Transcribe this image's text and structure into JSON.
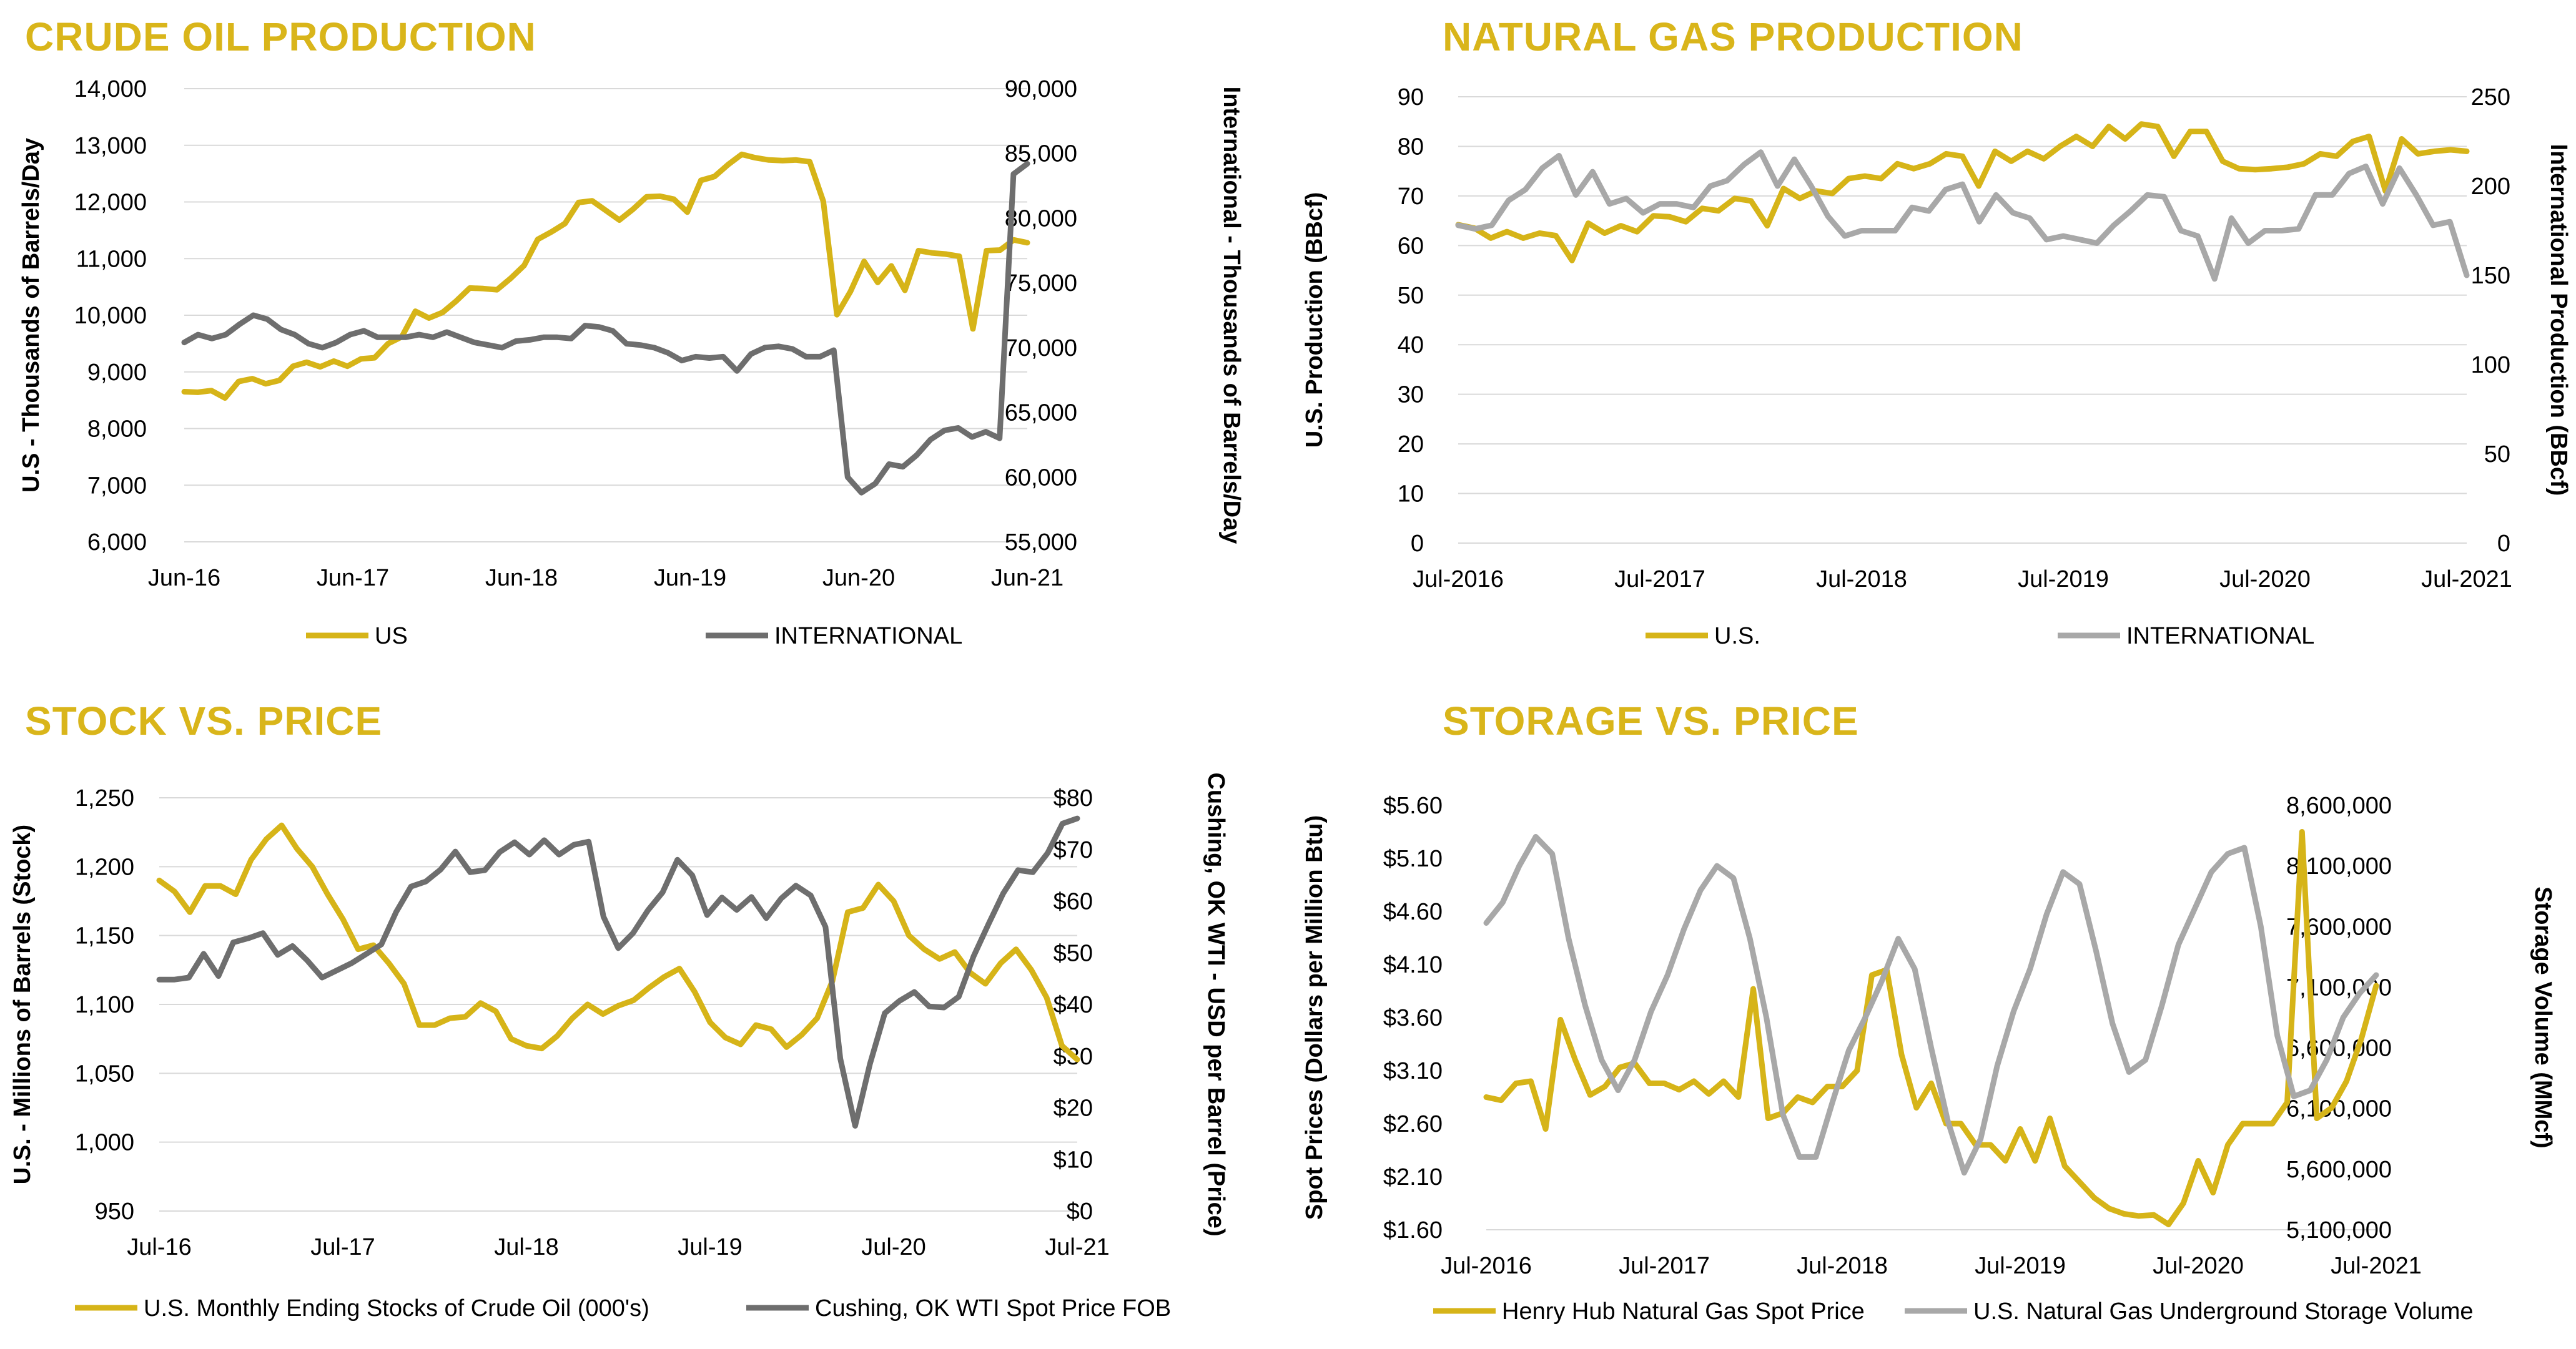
{
  "colors": {
    "gold": "#d6b418",
    "dark_gray": "#6e6e6e",
    "light_gray": "#a8a8a8",
    "grid": "#d9d9d9",
    "title": "#d9b51a"
  },
  "chart_data": [
    {
      "id": "crude",
      "type": "line",
      "title": "CRUDE OIL PRODUCTION",
      "x_ticks": [
        "Jun-16",
        "Jun-17",
        "Jun-18",
        "Jun-19",
        "Jun-20",
        "Jun-21"
      ],
      "ylabel": "U.S - Thousands of Barrels/Day",
      "y2label": "International - Thousands of Barrels/Day",
      "ylim": [
        6000,
        14000
      ],
      "y2lim": [
        55000,
        90000
      ],
      "y_ticks": [
        "6,000",
        "7,000",
        "8,000",
        "9,000",
        "10,000",
        "11,000",
        "12,000",
        "13,000",
        "14,000"
      ],
      "y2_ticks": [
        "55,000",
        "60,000",
        "65,000",
        "70,000",
        "75,000",
        "80,000",
        "85,000",
        "90,000"
      ],
      "grid": true,
      "legend_position": "bottom",
      "series": [
        {
          "name": "US",
          "axis": "left",
          "color": "#d6b418",
          "values": [
            8650,
            8640,
            8670,
            8540,
            8830,
            8880,
            8790,
            8850,
            9100,
            9170,
            9090,
            9190,
            9100,
            9230,
            9250,
            9500,
            9620,
            10070,
            9950,
            10050,
            10250,
            10480,
            10470,
            10450,
            10650,
            10880,
            11340,
            11470,
            11620,
            11990,
            12020,
            11850,
            11680,
            11870,
            12090,
            12100,
            12050,
            11820,
            12380,
            12450,
            12660,
            12840,
            12780,
            12740,
            12730,
            12740,
            12710,
            12010,
            10010,
            10420,
            10950,
            10580,
            10870,
            10440,
            11140,
            11100,
            11080,
            11040,
            9760,
            11140,
            11150,
            11330,
            11280
          ]
        },
        {
          "name": "INTERNATIONAL",
          "axis": "right",
          "color": "#6e6e6e",
          "values": [
            70400,
            71000,
            70700,
            71000,
            71800,
            72500,
            72200,
            71400,
            71000,
            70300,
            70000,
            70400,
            71000,
            71300,
            70800,
            70800,
            70800,
            71000,
            70800,
            71200,
            70800,
            70400,
            70200,
            70000,
            70500,
            70600,
            70800,
            70800,
            70700,
            71700,
            71600,
            71300,
            70300,
            70200,
            70000,
            69600,
            69000,
            69300,
            69200,
            69300,
            68200,
            69500,
            70000,
            70100,
            69900,
            69300,
            69300,
            69800,
            60000,
            58800,
            59500,
            61000,
            60800,
            61700,
            62900,
            63600,
            63800,
            63100,
            63500,
            63000,
            83400,
            84200
          ]
        }
      ]
    },
    {
      "id": "gas",
      "type": "line",
      "title": "NATURAL GAS PRODUCTION",
      "x_ticks": [
        "Jul-2016",
        "Jul-2017",
        "Jul-2018",
        "Jul-2019",
        "Jul-2020",
        "Jul-2021"
      ],
      "ylabel": "U.S.  Production (BBcf)",
      "y2label": "International Production (BBcf)",
      "ylim": [
        0,
        90
      ],
      "y2lim": [
        0,
        250
      ],
      "y_ticks": [
        "0",
        "10",
        "20",
        "30",
        "40",
        "50",
        "60",
        "70",
        "80",
        "90"
      ],
      "y2_ticks": [
        "0",
        "50",
        "100",
        "150",
        "200",
        "250"
      ],
      "grid": true,
      "legend_position": "bottom",
      "series": [
        {
          "name": "U.S.",
          "axis": "left",
          "color": "#d6b418",
          "values": [
            64.2,
            63.5,
            61.5,
            62.8,
            61.5,
            62.5,
            62.0,
            57.0,
            64.5,
            62.5,
            64.0,
            62.8,
            66.0,
            65.8,
            64.8,
            67.5,
            67.0,
            69.5,
            69.0,
            64.0,
            71.5,
            69.5,
            71.0,
            70.5,
            73.5,
            74.0,
            73.5,
            76.5,
            75.5,
            76.5,
            78.5,
            78.0,
            72.0,
            79.0,
            77.0,
            79.0,
            77.5,
            80.0,
            82.0,
            80.0,
            84.0,
            81.5,
            84.5,
            84.0,
            78.0,
            83.0,
            83.0,
            77.0,
            75.5,
            75.3,
            75.5,
            75.8,
            76.5,
            78.5,
            78.0,
            81.0,
            82.0,
            71.0,
            81.5,
            78.5,
            79.0,
            79.3,
            79.0
          ]
        },
        {
          "name": "INTERNATIONAL",
          "axis": "right",
          "color": "#a8a8a8",
          "values": [
            178,
            176,
            178,
            192,
            198,
            210,
            217,
            195,
            208,
            190,
            193,
            185,
            190,
            190,
            188,
            200,
            203,
            212,
            219,
            200,
            215,
            200,
            183,
            172,
            175,
            175,
            175,
            188,
            186,
            198,
            201,
            180,
            195,
            185,
            182,
            170,
            172,
            170,
            168,
            178,
            186,
            195,
            194,
            175,
            172,
            148,
            182,
            168,
            175,
            175,
            176,
            195,
            195,
            207,
            211,
            190,
            210,
            195,
            178,
            180,
            150
          ]
        }
      ]
    },
    {
      "id": "stock",
      "type": "line",
      "title": "STOCK VS. PRICE",
      "x_ticks": [
        "Jul-16",
        "Jul-17",
        "Jul-18",
        "Jul-19",
        "Jul-20",
        "Jul-21"
      ],
      "ylabel": "U.S. - Millions of Barrels (Stock)",
      "y2label": "Cushing, OK WTI - USD per Barrel (Price)",
      "ylim": [
        950,
        1250
      ],
      "y2lim": [
        0,
        80
      ],
      "y_ticks": [
        "950",
        "1,000",
        "1,050",
        "1,100",
        "1,150",
        "1,200",
        "1,250"
      ],
      "y2_ticks": [
        "$0",
        "$10",
        "$20",
        "$30",
        "$40",
        "$50",
        "$60",
        "$70",
        "$80"
      ],
      "grid": true,
      "legend_position": "bottom",
      "series": [
        {
          "name": "U.S. Monthly Ending Stocks of Crude Oil (000's)",
          "axis": "left",
          "color": "#d6b418",
          "values": [
            1190,
            1182,
            1167,
            1186,
            1186,
            1180,
            1205,
            1220,
            1230,
            1213,
            1200,
            1180,
            1162,
            1140,
            1143,
            1130,
            1115,
            1085,
            1085,
            1090,
            1091,
            1101,
            1095,
            1075,
            1070,
            1068,
            1077,
            1090,
            1100,
            1093,
            1099,
            1103,
            1112,
            1120,
            1126,
            1109,
            1087,
            1076,
            1071,
            1085,
            1082,
            1069,
            1078,
            1090,
            1117,
            1167,
            1170,
            1187,
            1175,
            1150,
            1140,
            1133,
            1138,
            1123,
            1115,
            1130,
            1140,
            1125,
            1105,
            1070,
            1060
          ]
        },
        {
          "name": "Cushing, OK WTI Spot Price FOB",
          "axis": "right",
          "color": "#6e6e6e",
          "values": [
            44.8,
            44.8,
            45.2,
            49.8,
            45.5,
            52.0,
            52.8,
            53.8,
            49.6,
            51.3,
            48.5,
            45.2,
            46.6,
            48.0,
            49.8,
            51.6,
            57.9,
            62.8,
            63.8,
            66.1,
            69.6,
            65.6,
            66.0,
            69.5,
            71.4,
            69.0,
            71.8,
            69.0,
            70.9,
            71.5,
            57.0,
            50.9,
            53.8,
            58.2,
            61.7,
            68.0,
            65.0,
            57.3,
            60.7,
            58.3,
            60.8,
            56.7,
            60.5,
            63.0,
            61.1,
            55.0,
            29.5,
            16.5,
            28.5,
            38.3,
            40.7,
            42.4,
            39.6,
            39.4,
            41.5,
            49.3,
            55.5,
            61.5,
            66.0,
            65.6,
            69.3,
            75.0,
            76.0
          ]
        }
      ]
    },
    {
      "id": "storage",
      "type": "line",
      "title": "STORAGE VS. PRICE",
      "x_ticks": [
        "Jul-2016",
        "Jul-2017",
        "Jul-2018",
        "Jul-2019",
        "Jul-2020",
        "Jul-2021"
      ],
      "ylabel": "Spot Prices (Dollars per Million Btu)",
      "y2label": "Storage Volume (MMcf)",
      "ylim": [
        1.6,
        5.6
      ],
      "y2lim": [
        5100000,
        8600000
      ],
      "y_ticks": [
        "$1.60",
        "$2.10",
        "$2.60",
        "$3.10",
        "$3.60",
        "$4.10",
        "$4.60",
        "$5.10",
        "$5.60"
      ],
      "y2_ticks": [
        "5,100,000",
        "5,600,000",
        "6,100,000",
        "6,600,000",
        "7,100,000",
        "7,600,000",
        "8,100,000",
        "8,600,000"
      ],
      "grid": false,
      "legend_position": "bottom",
      "series": [
        {
          "name": "Henry Hub Natural Gas Spot Price",
          "axis": "left",
          "color": "#d6b418",
          "values": [
            2.85,
            2.82,
            2.98,
            3.0,
            2.55,
            3.58,
            3.2,
            2.87,
            2.95,
            3.13,
            3.17,
            2.98,
            2.98,
            2.92,
            3.0,
            2.88,
            3.0,
            2.85,
            3.87,
            2.65,
            2.7,
            2.85,
            2.8,
            2.95,
            2.95,
            3.1,
            4.0,
            4.05,
            3.25,
            2.75,
            2.98,
            2.6,
            2.6,
            2.4,
            2.4,
            2.25,
            2.55,
            2.25,
            2.65,
            2.2,
            2.05,
            1.9,
            1.8,
            1.75,
            1.73,
            1.74,
            1.65,
            1.85,
            2.25,
            1.95,
            2.4,
            2.6,
            2.6,
            2.6,
            2.8,
            5.35,
            2.65,
            2.75,
            3.0,
            3.4,
            3.9
          ]
        },
        {
          "name": "U.S. Natural Gas Underground Storage Volume",
          "axis": "right",
          "color": "#a8a8a8",
          "values": [
            7630000,
            7800000,
            8100000,
            8340000,
            8200000,
            7500000,
            6950000,
            6500000,
            6250000,
            6500000,
            6900000,
            7200000,
            7580000,
            7900000,
            8100000,
            8000000,
            7500000,
            6850000,
            6050000,
            5700000,
            5700000,
            6150000,
            6580000,
            6850000,
            7150000,
            7500000,
            7250000,
            6600000,
            6000000,
            5570000,
            5850000,
            6450000,
            6900000,
            7250000,
            7700000,
            8050000,
            7950000,
            7400000,
            6800000,
            6400000,
            6500000,
            6950000,
            7450000,
            7750000,
            8050000,
            8200000,
            8250000,
            7600000,
            6700000,
            6200000,
            6250000,
            6500000,
            6850000,
            7050000,
            7200000
          ]
        }
      ]
    }
  ]
}
